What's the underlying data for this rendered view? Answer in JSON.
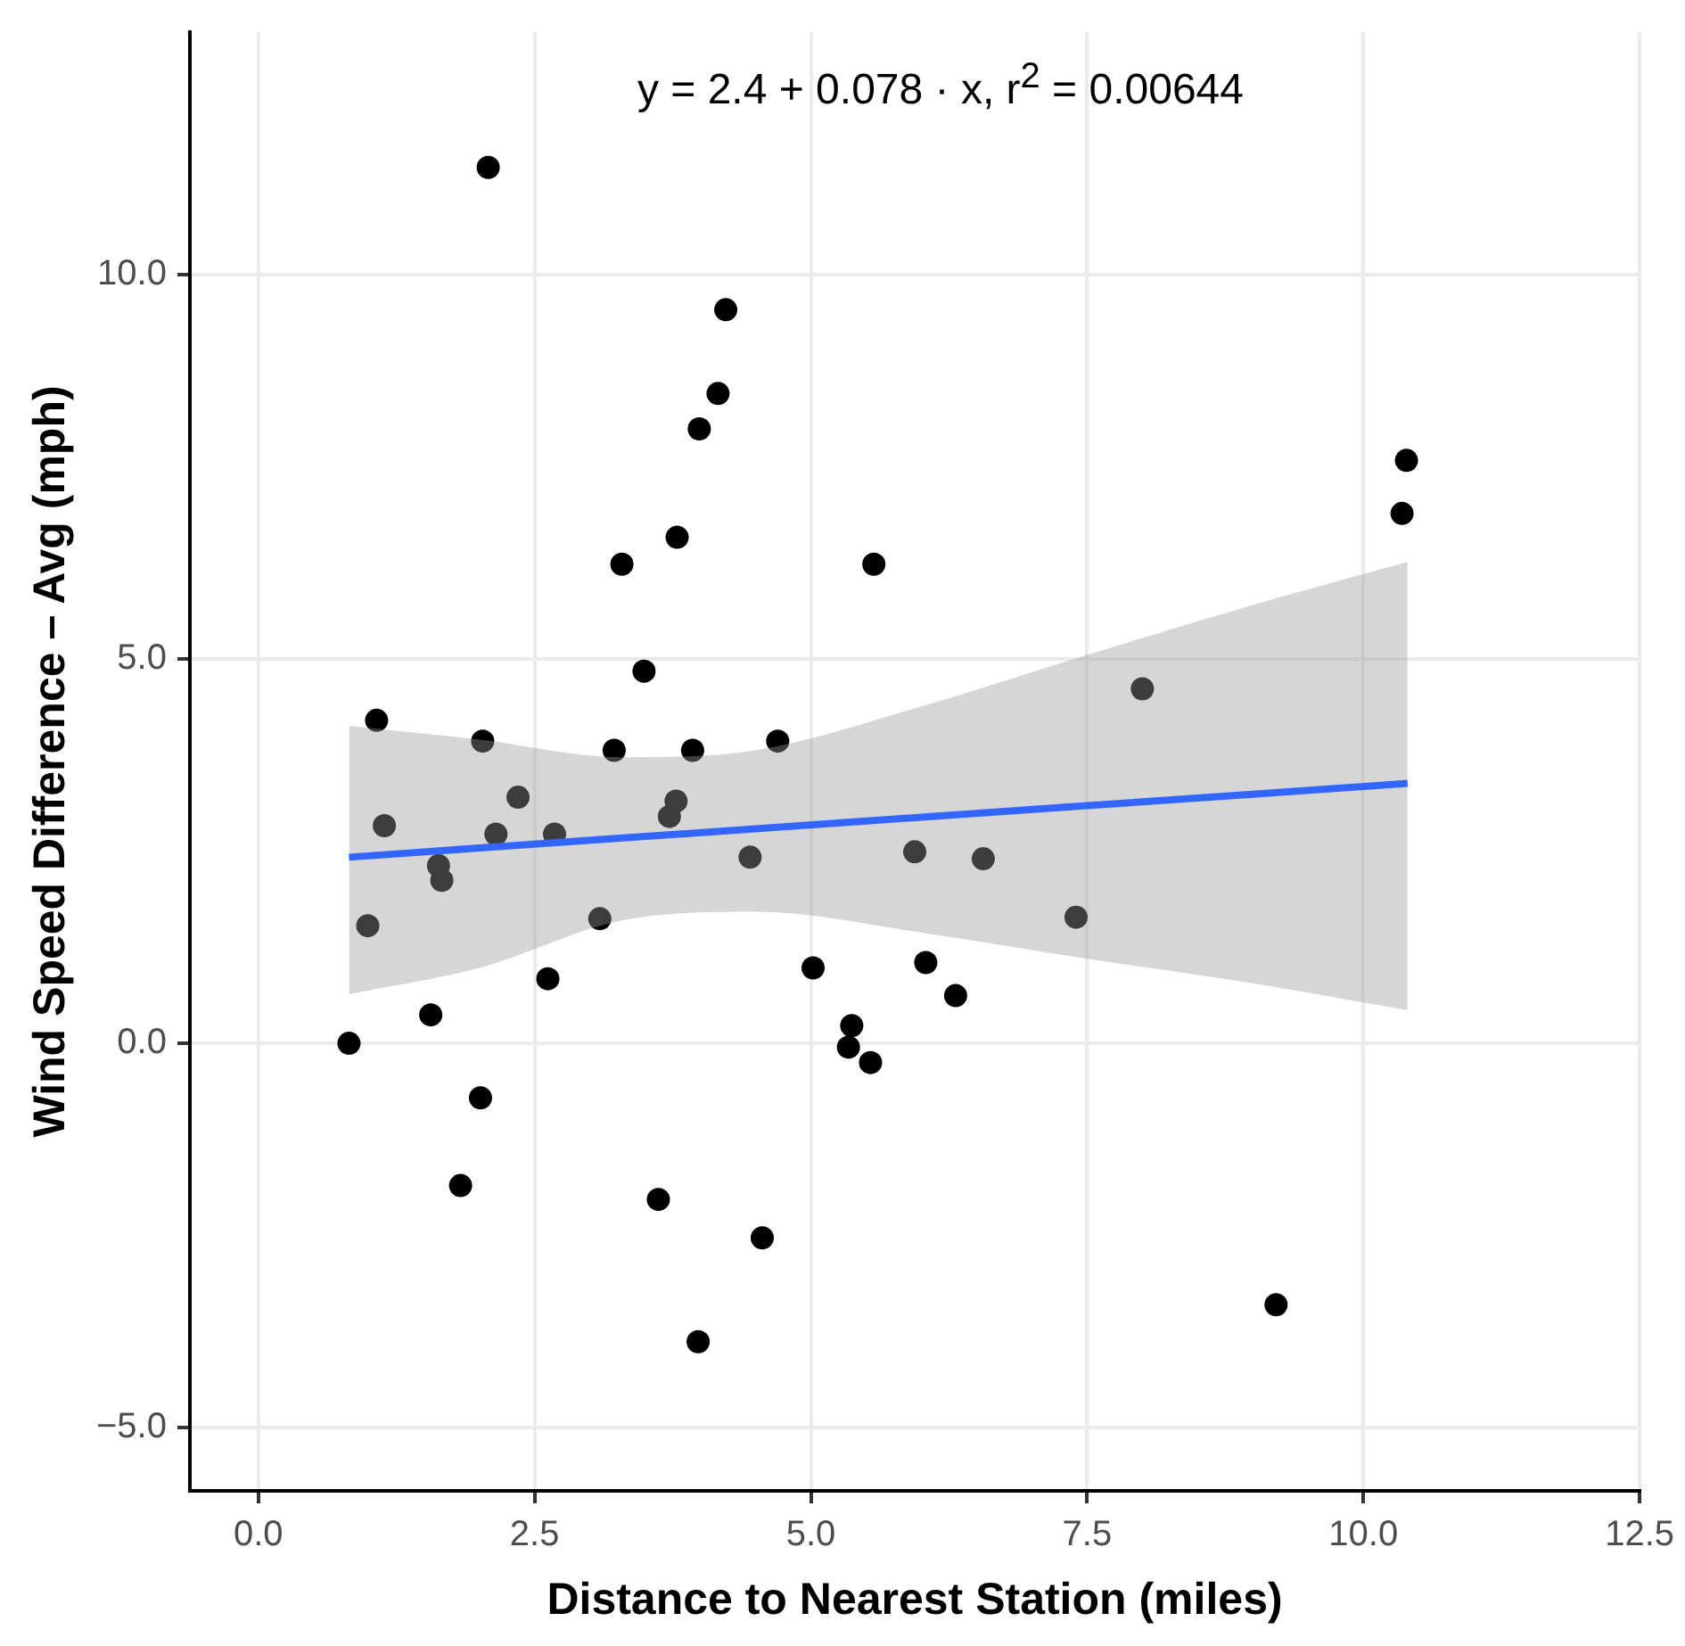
{
  "chart_data": {
    "type": "scatter",
    "xlabel": "Distance to Nearest Station (miles)",
    "ylabel": "Wind Speed Difference – Avg (mph)",
    "annotations": [
      "y = 2.4 + 0.078 · x,  r$^{2}$ = 0.00644"
    ],
    "xlim": [
      -0.62,
      12.5
    ],
    "ylim": [
      -5.82,
      13.15
    ],
    "xticks": [
      {
        "value": 0,
        "label": "0.0"
      },
      {
        "value": 2.5,
        "label": "2.5"
      },
      {
        "value": 5,
        "label": "5.0"
      },
      {
        "value": 7.5,
        "label": "7.5"
      },
      {
        "value": 10,
        "label": "10.0"
      },
      {
        "value": 12.5,
        "label": "12.5"
      }
    ],
    "yticks": [
      {
        "value": -5,
        "label": "−5.0"
      },
      {
        "value": 0,
        "label": "0.0"
      },
      {
        "value": 5,
        "label": "5.0"
      },
      {
        "value": 10,
        "label": "10.0"
      }
    ],
    "grid": true,
    "legend": false,
    "series": [
      {
        "marker": "circle",
        "color": "#000000",
        "x": [
          0.82,
          0.99,
          1.07,
          1.14,
          1.56,
          1.63,
          1.66,
          1.83,
          2.01,
          2.03,
          2.08,
          2.15,
          2.35,
          2.62,
          2.68,
          3.09,
          3.22,
          3.29,
          3.49,
          3.62,
          3.72,
          3.78,
          3.79,
          3.93,
          3.98,
          3.99,
          4.16,
          4.23,
          4.45,
          4.56,
          4.7,
          5.02,
          5.34,
          5.37,
          5.54,
          5.57,
          5.94,
          6.04,
          6.31,
          6.56,
          7.4,
          8.0,
          9.21,
          10.35,
          10.39
        ],
        "values": [
          0.0,
          1.53,
          4.2,
          2.83,
          0.37,
          2.31,
          2.12,
          -1.85,
          -0.71,
          3.93,
          11.39,
          2.72,
          3.2,
          0.84,
          2.72,
          1.62,
          3.81,
          6.23,
          4.84,
          -2.03,
          2.95,
          3.15,
          6.58,
          3.81,
          -3.88,
          7.99,
          8.45,
          9.54,
          2.42,
          -2.53,
          3.93,
          0.98,
          -0.05,
          0.23,
          -0.25,
          6.23,
          2.49,
          1.05,
          0.62,
          2.4,
          1.64,
          4.61,
          -3.4,
          6.89,
          7.58
        ]
      },
      {
        "type": "line",
        "color": "#3366ff",
        "x": [
          0.82,
          2.0,
          3.3,
          4.5,
          6.0,
          7.5,
          9.0,
          10.4
        ],
        "values": [
          2.42,
          2.54,
          2.67,
          2.79,
          2.94,
          3.09,
          3.24,
          3.38
        ],
        "lower": [
          0.64,
          0.98,
          1.6,
          1.71,
          1.44,
          1.1,
          0.78,
          0.43
        ],
        "upper": [
          4.13,
          3.95,
          3.72,
          3.81,
          4.38,
          5.05,
          5.7,
          6.26
        ]
      }
    ]
  }
}
